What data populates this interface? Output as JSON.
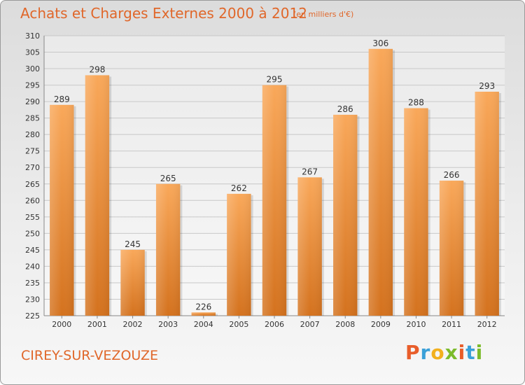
{
  "header": {
    "title": "Achats et Charges Externes 2000 à 2012",
    "unit": "(en milliers d'€)"
  },
  "footer": {
    "place": "CIREY-SUR-VEZOUZE",
    "logo": "Proxiti"
  },
  "colors": {
    "accent": "#e0672a",
    "bar_light": "#f9a85a",
    "bar_dark": "#d4721e",
    "logo_letters": [
      "#e85d2a",
      "#3aa0d8",
      "#f2b01e",
      "#7cbb2b",
      "#e85d2a",
      "#3aa0d8",
      "#7cbb2b"
    ]
  },
  "chart_data": {
    "type": "bar",
    "title": "Achats et Charges Externes 2000 à 2012",
    "subtitle": "(en milliers d'€)",
    "categories": [
      "2000",
      "2001",
      "2002",
      "2003",
      "2004",
      "2005",
      "2006",
      "2007",
      "2008",
      "2009",
      "2010",
      "2011",
      "2012"
    ],
    "values": [
      289,
      298,
      245,
      265,
      226,
      262,
      295,
      267,
      286,
      306,
      288,
      266,
      293
    ],
    "ylim": [
      225,
      310
    ],
    "yticks": [
      225,
      230,
      235,
      240,
      245,
      250,
      255,
      260,
      265,
      270,
      275,
      280,
      285,
      290,
      295,
      300,
      305,
      310
    ],
    "grid": true,
    "legend": "none"
  }
}
